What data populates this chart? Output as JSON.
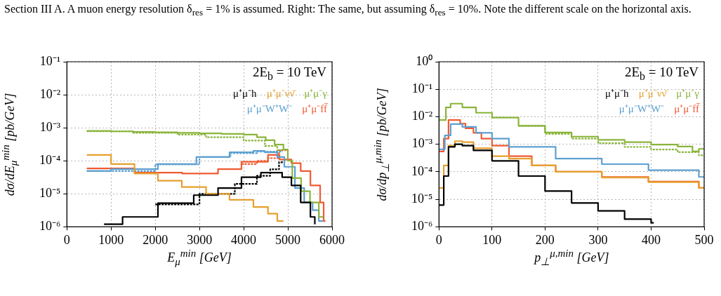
{
  "chart_data": [
    {
      "type": "step",
      "title": "2E$_{b}$ = 10 TeV",
      "xlabel": "E$_{μ}$$^{min}$  [GeV]",
      "ylabel": "dσ/dE$_{μ}$$^{min}$  [pb/GeV]",
      "annotations": [
        "Section III A. A muon energy resolution δ$_{res}$ = 1% is assumed. Right: The same, but assuming δ$_{res}$ = 10%. Note the different scale on the horizontal axis."
      ],
      "xlim": [
        0,
        6000
      ],
      "xticks": [
        0,
        1000,
        2000,
        3000,
        4000,
        5000,
        6000
      ],
      "ylim": [
        1e-06,
        0.1
      ],
      "yticks": [
        {
          "value": 1e-06,
          "label": "10⁻⁶"
        },
        {
          "value": 1e-05,
          "label": "10⁻⁵"
        },
        {
          "value": 0.0001,
          "label": "10⁻⁴"
        },
        {
          "value": 0.001,
          "label": "10⁻³"
        },
        {
          "value": 0.01,
          "label": "10⁻²"
        },
        {
          "value": 0.1,
          "label": "10⁻¹"
        }
      ],
      "log": "y",
      "grid": true,
      "legend": "top right",
      "marker": "none",
      "series": [
        {
          "name": "μ⁺μ⁻h",
          "color": "#000000",
          "line_style": "solid",
          "x": [
            840,
            1260,
            2060,
            2870,
            3420,
            3950,
            4390,
            4650,
            4870,
            5080,
            5290,
            5510,
            5610
          ],
          "values": [
            1.2e-06,
            2e-06,
            5.2e-06,
            9.1e-06,
            1.5e-05,
            3.2e-05,
            4.4e-05,
            4.4e-05,
            3.2e-05,
            1.8e-05,
            5.5e-06,
            2e-06,
            1.2e-06
          ]
        },
        {
          "name": "μ⁺μ⁻νν̄",
          "color": "#e6a02e",
          "line_style": "solid",
          "x": [
            450,
            1000,
            1530,
            2060,
            2600,
            3150,
            3680,
            4220,
            4550,
            4760,
            4900
          ],
          "values": [
            0.00015,
            8e-05,
            4.1e-05,
            2.5e-05,
            1.6e-05,
            1e-05,
            6.6e-06,
            4e-06,
            2.5e-06,
            1.5e-06,
            1.5e-06
          ]
        },
        {
          "name": "μ⁺μ⁻γ",
          "color": "#8ab43a",
          "line_style": "solid",
          "x": [
            450,
            1000,
            1500,
            2000,
            2500,
            3000,
            3500,
            4000,
            4300,
            4500,
            4700,
            4900,
            5000,
            5100,
            5300,
            5500,
            5700,
            5800
          ],
          "values": [
            0.0008,
            0.00078,
            0.00075,
            0.00073,
            0.0007,
            0.00068,
            0.00065,
            0.00062,
            0.00052,
            0.00042,
            0.00031,
            0.00022,
            0.0001,
            3e-05,
            1.2e-05,
            5.5e-06,
            2e-06,
            2e-06
          ]
        },
        {
          "name": "μ⁺μ⁻W⁺W⁻",
          "color": "#5da0d0",
          "line_style": "solid",
          "x": [
            450,
            1000,
            2060,
            2930,
            3680,
            4220,
            4480,
            4760,
            4920,
            5160,
            5370,
            5560,
            5700,
            5800
          ],
          "values": [
            4.9e-05,
            5.6e-05,
            8e-05,
            0.00013,
            0.00018,
            0.0002,
            0.00018,
            0.00013,
            6.6e-05,
            1.5e-05,
            5.5e-06,
            3.2e-06,
            1.5e-06,
            1.5e-06
          ]
        },
        {
          "name": "μ⁺μ⁻ff̄",
          "color": "#f05a32",
          "line_style": "solid",
          "x": [
            450,
            1530,
            2610,
            3420,
            3950,
            4550,
            4810,
            5080,
            5290,
            5510,
            5730,
            5810,
            5850
          ],
          "values": [
            5.9e-05,
            4.4e-05,
            4.1e-05,
            5.6e-05,
            9.3e-05,
            0.00015,
            0.00011,
            8.5e-05,
            4.9e-05,
            1.8e-05,
            5.5e-06,
            1.5e-06,
            1.5e-06
          ]
        },
        {
          "color": "#8ab43a",
          "line_style": "dashed",
          "x": [
            450,
            1500,
            2500,
            3150,
            4000,
            4480,
            4760,
            4870
          ],
          "values": [
            0.00078,
            0.0007,
            0.00062,
            0.00052,
            0.00041,
            0.00028,
            0.00021,
            0.00021
          ]
        },
        {
          "color": "#5da0d0",
          "line_style": "dashed",
          "x": [
            450,
            2000,
            3000,
            3700,
            4300,
            4700,
            4880
          ],
          "values": [
            4.9e-05,
            7.8e-05,
            0.00013,
            0.00017,
            0.00019,
            0.00019,
            0.00019
          ]
        },
        {
          "color": "#f05a32",
          "line_style": "dashed",
          "x": [
            3950,
            4300,
            4550,
            4800,
            5000
          ],
          "values": [
            8e-05,
            0.0001,
            0.00012,
            0.00021,
            0.00021
          ]
        },
        {
          "color": "#000000",
          "line_style": "dashed",
          "x": [
            2000,
            3000,
            3800,
            4300,
            4600,
            4800,
            4900
          ],
          "values": [
            4.8e-06,
            1e-05,
            2e-05,
            3.5e-05,
            5.5e-05,
            9e-05,
            9e-05
          ]
        }
      ]
    },
    {
      "type": "step",
      "title": "2E$_{b}$ = 10 TeV",
      "xlabel": "p$_{⊥}$$^{μ,min}$  [GeV]",
      "ylabel": "dσ/dp$_{⊥}$$^{μ,min}$  [pb/GeV]",
      "xlim": [
        0,
        500
      ],
      "xticks": [
        0,
        100,
        200,
        300,
        400,
        500
      ],
      "ylim": [
        1e-06,
        1
      ],
      "yticks": [
        {
          "value": 1e-06,
          "label": "10⁻⁶"
        },
        {
          "value": 1e-05,
          "label": "10⁻⁵"
        },
        {
          "value": 0.0001,
          "label": "10⁻⁴"
        },
        {
          "value": 0.001,
          "label": "10⁻³"
        },
        {
          "value": 0.01,
          "label": "10⁻²"
        },
        {
          "value": 0.1,
          "label": "10⁻¹"
        },
        {
          "value": 1,
          "label": "10⁰"
        }
      ],
      "log": "y",
      "grid": true,
      "legend": "top right",
      "marker": "none",
      "series": [
        {
          "name": "μ⁺μ⁻h",
          "color": "#000000",
          "line_style": "solid",
          "x": [
            0,
            9,
            18,
            30,
            44,
            65,
            100,
            150,
            200,
            250,
            300,
            350,
            400,
            405
          ],
          "values": [
            6.2e-06,
            7e-05,
            0.00081,
            0.001,
            0.00089,
            0.0006,
            0.00025,
            7e-05,
            2e-05,
            7.4e-06,
            3.8e-06,
            1.9e-06,
            1.4e-06,
            1.4e-06
          ]
        },
        {
          "name": "μ⁺μ⁻νν̄",
          "color": "#e6a02e",
          "line_style": "solid",
          "x": [
            0,
            9,
            18,
            30,
            44,
            65,
            100,
            132,
            175,
            220,
            307,
            395,
            490,
            500
          ],
          "values": [
            2.6e-05,
            0.00017,
            0.00089,
            0.0013,
            0.0012,
            0.00072,
            0.00037,
            0.0003,
            0.00017,
            0.0001,
            6.2e-05,
            4.2e-05,
            2.6e-05,
            2.6e-05
          ]
        },
        {
          "name": "μ⁺μ⁻γ",
          "color": "#8ab43a",
          "line_style": "solid",
          "x": [
            0,
            13,
            22,
            44,
            70,
            100,
            150,
            200,
            250,
            300,
            350,
            400,
            450,
            478,
            490,
            500
          ],
          "values": [
            0.0076,
            0.022,
            0.03,
            0.022,
            0.014,
            0.0093,
            0.0047,
            0.0027,
            0.0019,
            0.00145,
            0.0012,
            0.00098,
            0.00083,
            0.00055,
            0.00068,
            0.00068
          ]
        },
        {
          "name": "μ⁺μ⁻W⁺W⁻",
          "color": "#5da0d0",
          "line_style": "solid",
          "x": [
            0,
            11,
            22,
            44,
            70,
            100,
            132,
            220,
            307,
            395,
            490,
            500
          ],
          "values": [
            0.00066,
            0.0021,
            0.0054,
            0.0043,
            0.0026,
            0.0016,
            0.00081,
            0.0003,
            0.00019,
            0.000115,
            6.5e-05,
            6.5e-05
          ]
        },
        {
          "name": "μ⁺μ⁻ff̄",
          "color": "#f05a32",
          "line_style": "solid",
          "x": [
            0,
            9,
            18,
            40,
            50,
            65,
            80,
            100,
            132,
            175,
            220,
            307,
            395,
            490,
            500
          ],
          "values": [
            0.00055,
            0.0016,
            0.0076,
            0.0056,
            0.0038,
            0.0026,
            0.0016,
            0.00089,
            0.00037,
            0.00017,
            0.0001,
            6.5e-05,
            4.4e-05,
            2.6e-05,
            2.6e-05
          ]
        },
        {
          "color": "#8ab43a",
          "line_style": "dashed",
          "x": [
            150,
            200,
            250,
            300,
            350,
            400,
            450,
            490,
            500
          ],
          "values": [
            0.0047,
            0.0024,
            0.0016,
            0.0011,
            0.0008,
            0.00065,
            0.00052,
            0.0004,
            0.0004
          ]
        }
      ]
    }
  ]
}
